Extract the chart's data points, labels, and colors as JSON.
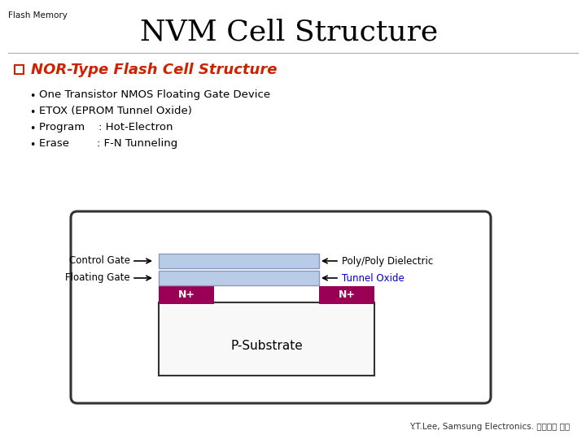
{
  "title": "NVM Cell Structure",
  "subtitle": "Flash Memory",
  "section_title": "NOR-Type Flash Cell Structure",
  "bullets": [
    "One Transistor NMOS Floating Gate Device",
    "ETOX (EPROM Tunnel Oxide)",
    "Program    : Hot-Electron",
    "Erase        : F-N Tunneling"
  ],
  "diagram": {
    "control_gate_label": "Control Gate",
    "floating_gate_label": "Floating Gate",
    "poly_dielectric_label": "Poly/Poly Dielectric",
    "tunnel_oxide_label": "Tunnel Oxide",
    "n_plus_label": "N+",
    "substrate_label": "P-Substrate",
    "gate_color": "#b8cce8",
    "nplus_color": "#990055",
    "substrate_color": "#ffffff",
    "tunnel_oxide_color_text": "#0000cc"
  },
  "footer": "Y.T.Lee, Samsung Electronics. 발표자료 참조",
  "title_color": "#000000",
  "section_color": "#cc2200",
  "bullet_color": "#000000",
  "background_color": "#ffffff",
  "line_color": "#aaaaaa",
  "diagram_box_color": "#333333"
}
